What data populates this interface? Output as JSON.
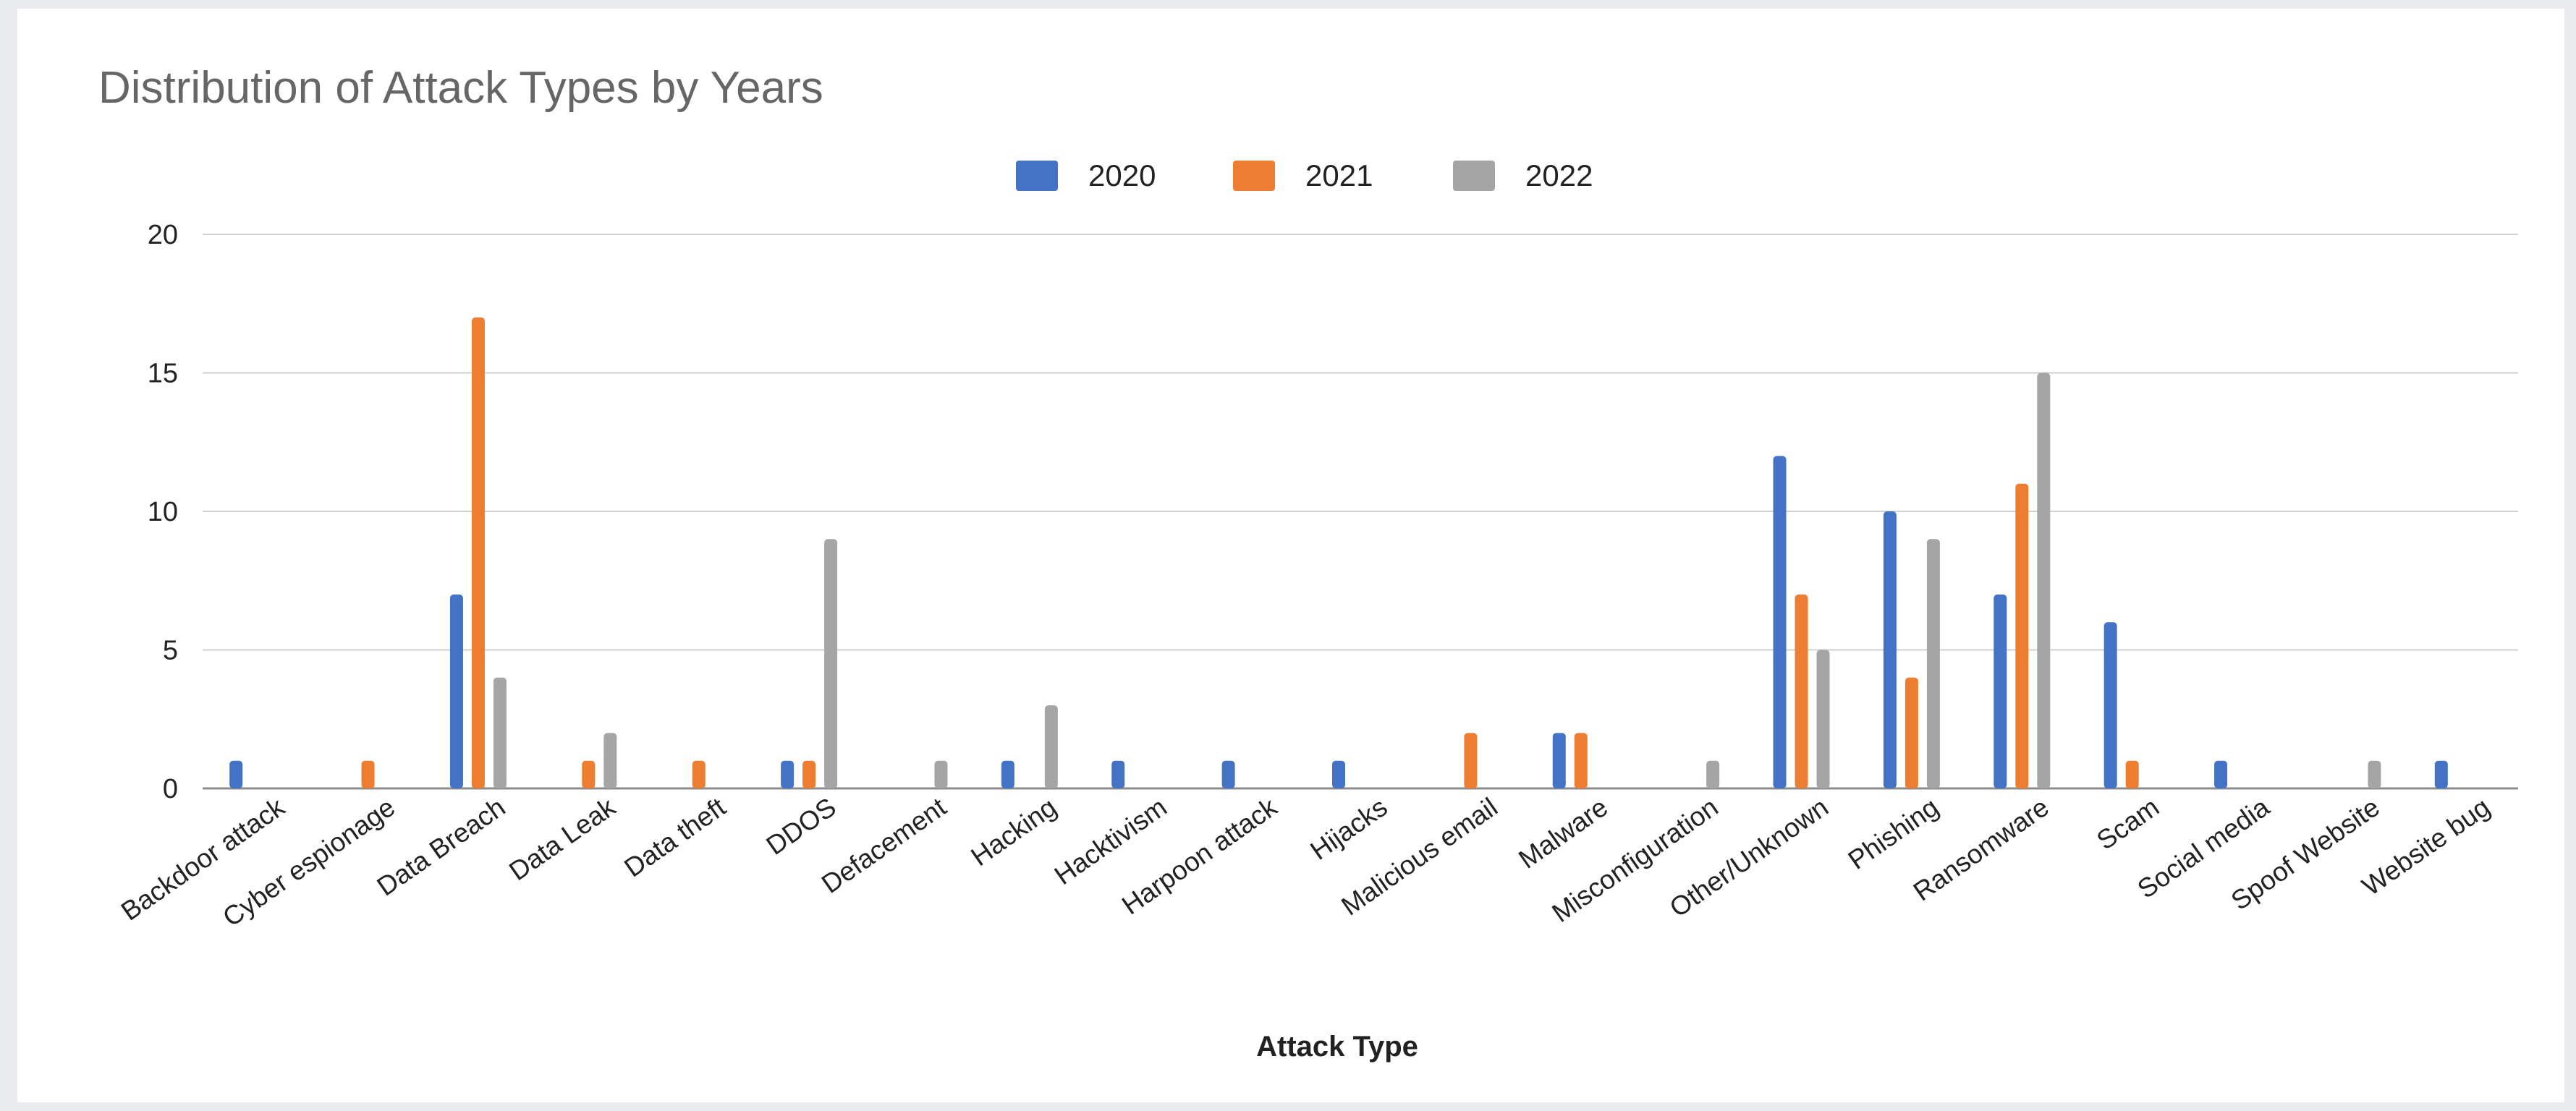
{
  "chart_data": {
    "type": "bar",
    "title": "Distribution of Attack Types by Years",
    "xlabel": "Attack Type",
    "ylabel": "",
    "ylim": [
      0,
      20
    ],
    "yticks": [
      0,
      5,
      10,
      15,
      20
    ],
    "grid": true,
    "legend_position": "top-center",
    "categories": [
      "Backdoor attack",
      "Cyber espionage",
      "Data Breach",
      "Data Leak",
      "Data theft",
      "DDOS",
      "Defacement",
      "Hacking",
      "Hacktivism",
      "Harpoon attack",
      "Hijacks",
      "Malicious email",
      "Malware",
      "Misconfiguration",
      "Other/Unknown",
      "Phishing",
      "Ransomware",
      "Scam",
      "Social media",
      "Spoof Website",
      "Website bug"
    ],
    "series": [
      {
        "name": "2020",
        "color": "#4472c4",
        "values": [
          1,
          0,
          7,
          0,
          0,
          1,
          0,
          1,
          1,
          1,
          1,
          0,
          2,
          0,
          12,
          10,
          7,
          6,
          1,
          0,
          1
        ]
      },
      {
        "name": "2021",
        "color": "#ed7d31",
        "values": [
          0,
          1,
          17,
          1,
          1,
          1,
          0,
          0,
          0,
          0,
          0,
          2,
          2,
          0,
          7,
          4,
          11,
          1,
          0,
          0,
          0
        ]
      },
      {
        "name": "2022",
        "color": "#a5a5a5",
        "values": [
          0,
          0,
          4,
          2,
          0,
          9,
          1,
          3,
          0,
          0,
          0,
          0,
          0,
          1,
          5,
          9,
          15,
          0,
          0,
          1,
          0
        ]
      }
    ]
  }
}
